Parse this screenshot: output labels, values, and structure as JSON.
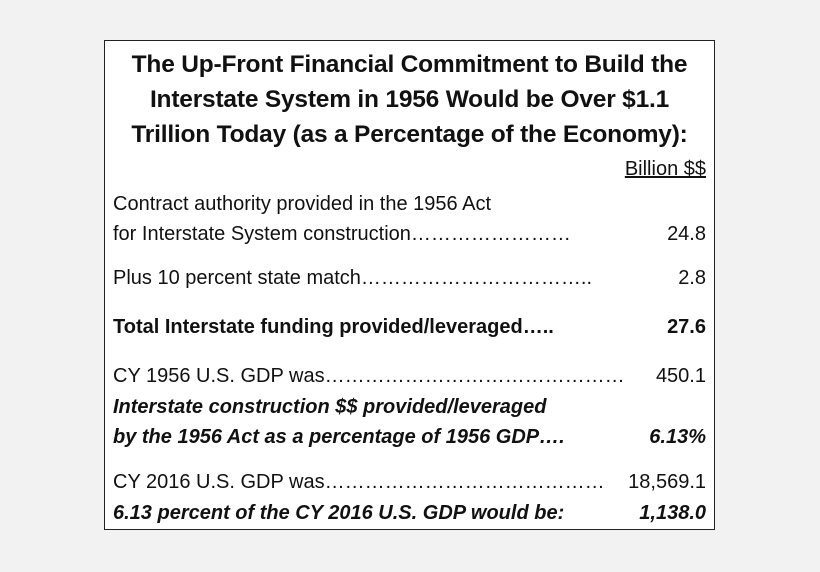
{
  "title": {
    "line1": "The Up-Front Financial Commitment to Build the",
    "line2": "Interstate System in 1956 Would be Over $1.1",
    "line3": "Trillion Today (as a Percentage of the Economy):"
  },
  "unit_header": "Billion $$",
  "rows": [
    {
      "label_line1": "Contract authority provided in the 1956 Act",
      "label_line2": "for Interstate System construction……………………",
      "value": "24.8"
    },
    {
      "label": "Plus 10 percent state match……………………………..",
      "value": "2.8"
    },
    {
      "label": "Total Interstate funding provided/leveraged…..",
      "value": "27.6"
    },
    {
      "label": "CY 1956 U.S. GDP was………………………………………",
      "value": "450.1"
    },
    {
      "label_line1": "Interstate construction $$ provided/leveraged",
      "label_line2": "by the 1956 Act as a percentage of 1956 GDP….",
      "value": "6.13%"
    },
    {
      "label": "CY 2016 U.S. GDP was……………………………………",
      "value": "18,569.1"
    },
    {
      "label": "6.13 percent of the CY 2016 U.S. GDP would be:",
      "value": "1,138.0"
    }
  ]
}
